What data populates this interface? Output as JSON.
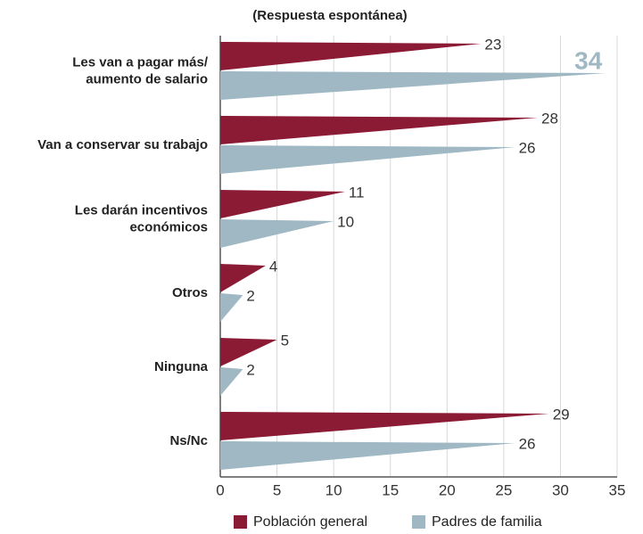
{
  "chart_data": {
    "type": "bar",
    "subtitle": "(Respuesta espontánea)",
    "categories": [
      "Les van a pagar más/\naumento de salario",
      "Van a conservar su trabajo",
      "Les darán incentivos\neconómicos",
      "Otros",
      "Ninguna",
      "Ns/Nc"
    ],
    "series": [
      {
        "name": "Población general",
        "color": "#8b1a35",
        "values": [
          23,
          28,
          11,
          4,
          5,
          29
        ]
      },
      {
        "name": "Padres de familia",
        "color": "#9fb8c4",
        "values": [
          34,
          26,
          10,
          2,
          2,
          26
        ]
      }
    ],
    "xlim": [
      0,
      35
    ],
    "xticks": [
      0,
      5,
      10,
      15,
      20,
      25,
      30,
      35
    ],
    "grid": true
  }
}
